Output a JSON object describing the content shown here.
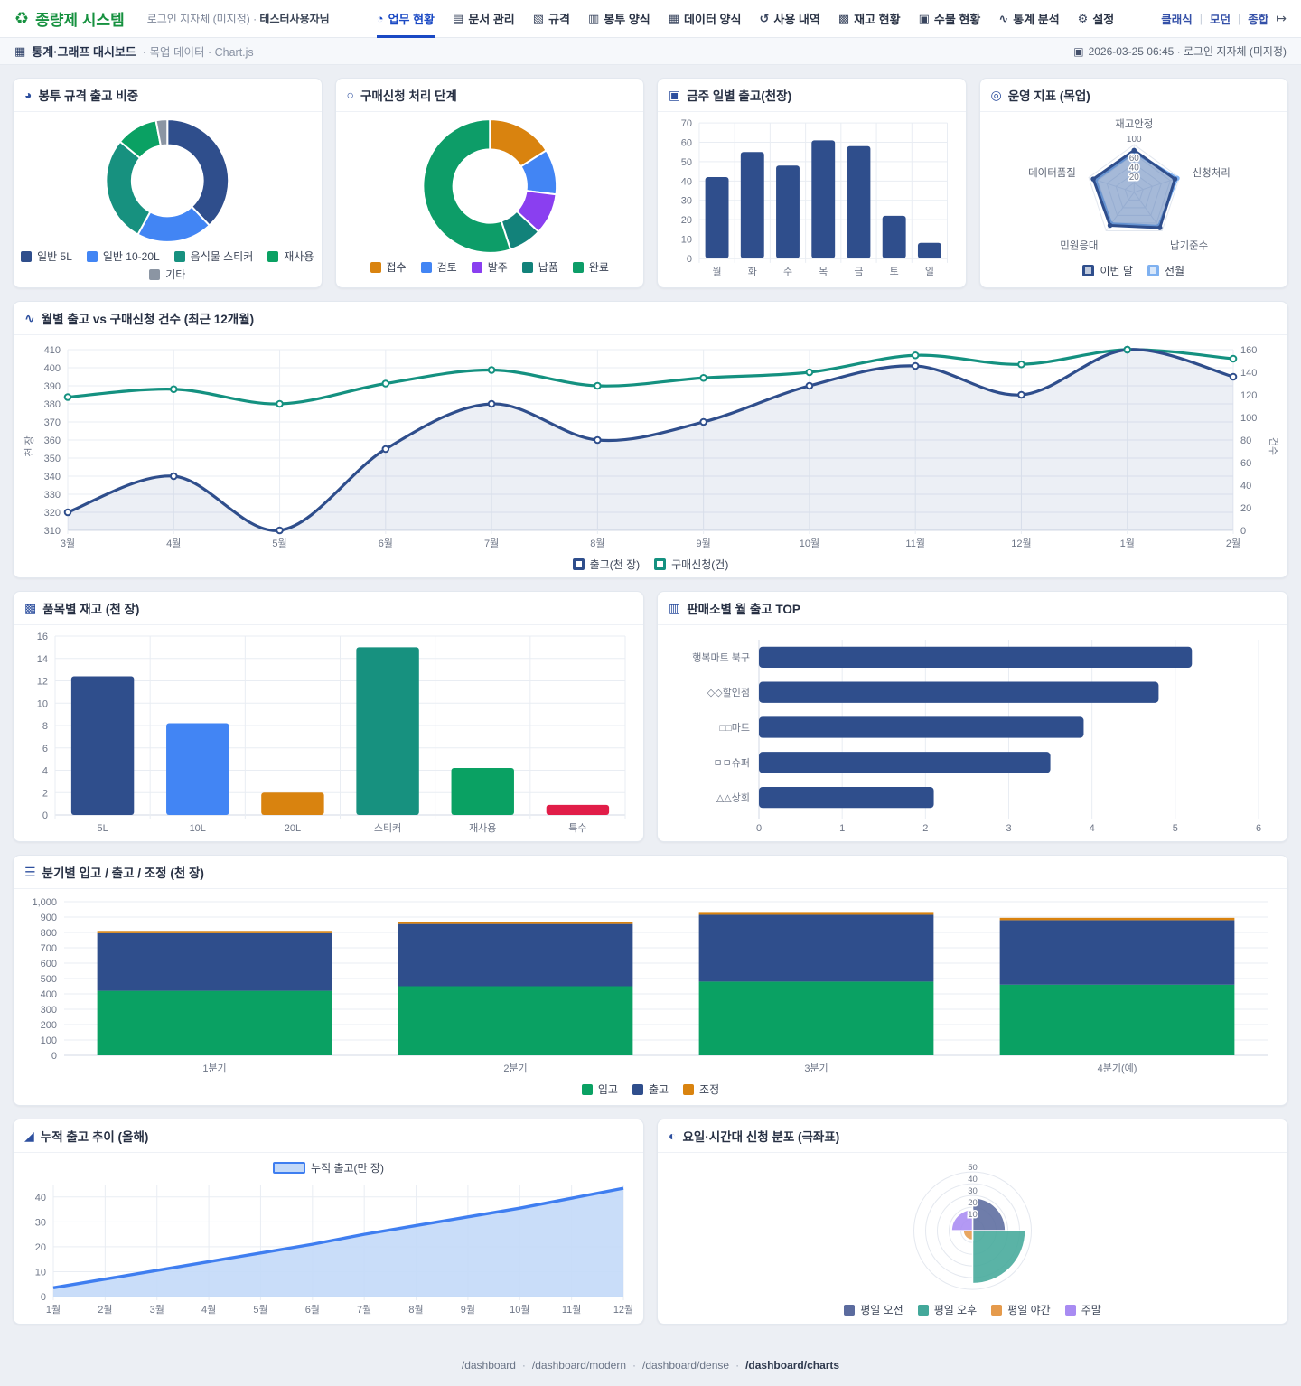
{
  "brand": {
    "icon": "♻",
    "title": "종량제 시스템",
    "org": "로그인 지자체 (미지정) ·",
    "user": "테스터사용자님"
  },
  "nav": {
    "items": [
      {
        "icon": "◔",
        "label": "업무 현황",
        "active": true
      },
      {
        "icon": "▤",
        "label": "문서 관리"
      },
      {
        "icon": "▧",
        "label": "규격"
      },
      {
        "icon": "▥",
        "label": "봉투 양식"
      },
      {
        "icon": "▦",
        "label": "데이터 양식"
      },
      {
        "icon": "↺",
        "label": "사용 내역"
      },
      {
        "icon": "▩",
        "label": "재고 현황"
      },
      {
        "icon": "▣",
        "label": "수불 현황"
      },
      {
        "icon": "∿",
        "label": "통계 분석"
      },
      {
        "icon": "⚙",
        "label": "설정"
      }
    ],
    "mode_links": [
      "클래식",
      "모던",
      "종합"
    ],
    "link_separator": "|",
    "logout_icon": "↦"
  },
  "breadcrumb": {
    "icon": "▦",
    "title": "통계·그래프 대시보드",
    "trail": "· 목업 데이터 · Chart.js",
    "meta_icon": "▣",
    "meta": "2026-03-25 06:45 · 로그인 지자체 (미지정)"
  },
  "chart_data": [
    {
      "title": "봉투 규격 출고 비중",
      "icon": "◕",
      "type": "pie",
      "cutout": 0.58,
      "labels": [
        "일반 5L",
        "일반 10-20L",
        "음식물 스티커",
        "재사용",
        "기타"
      ],
      "values": [
        38,
        20,
        28,
        11,
        3
      ],
      "colors": [
        "#2f4e8c",
        "#4285f4",
        "#17917f",
        "#0aa163",
        "#8b95a3"
      ]
    },
    {
      "title": "구매신청 처리 단계",
      "icon": "○",
      "type": "pie",
      "cutout": 0.55,
      "labels": [
        "접수",
        "검토",
        "발주",
        "납품",
        "완료"
      ],
      "values": [
        16,
        11,
        10,
        8,
        55
      ],
      "colors": [
        "#d9830f",
        "#4285f4",
        "#8a3ff0",
        "#12827a",
        "#0d9d68"
      ]
    },
    {
      "title": "금주 일별 출고(천장)",
      "icon": "▣",
      "type": "bar",
      "categories": [
        "월",
        "화",
        "수",
        "목",
        "금",
        "토",
        "일"
      ],
      "values": [
        42,
        55,
        48,
        61,
        58,
        22,
        8
      ],
      "color": "#2f4e8c",
      "ymax": 70,
      "ystep": 10
    },
    {
      "title": "운영 지표 (목업)",
      "icon": "◎",
      "type": "radar",
      "axes": [
        "재고안정",
        "신청처리",
        "납기준수",
        "민원응대",
        "데이터품질"
      ],
      "rmax": 100,
      "ticks": [
        20,
        40,
        60,
        100
      ],
      "series": [
        {
          "name": "이번 달",
          "values": [
            88,
            90,
            92,
            86,
            90
          ],
          "color": "#2f4e8c"
        },
        {
          "name": "전월",
          "values": [
            84,
            95,
            88,
            82,
            85
          ],
          "color": "#7fb1f0"
        }
      ]
    },
    {
      "title": "월별 출고 vs 구매신청 건수 (최근 12개월)",
      "icon": "∿",
      "type": "line",
      "x": [
        "3월",
        "4월",
        "5월",
        "6월",
        "7월",
        "8월",
        "9월",
        "10월",
        "11월",
        "12월",
        "1월",
        "2월"
      ],
      "series": [
        {
          "name": "출고(천 장)",
          "axis": "left",
          "values": [
            320,
            340,
            310,
            355,
            380,
            360,
            370,
            390,
            401,
            385,
            410,
            395
          ],
          "color": "#2f4e8c",
          "fill": true
        },
        {
          "name": "구매신청(건)",
          "axis": "right",
          "values": [
            118,
            125,
            112,
            130,
            142,
            128,
            135,
            140,
            155,
            147,
            160,
            152
          ],
          "color": "#149180",
          "fill": false
        }
      ],
      "left_axis": {
        "min": 310,
        "max": 410,
        "step": 10,
        "label": "천 장"
      },
      "right_axis": {
        "min": 0,
        "max": 160,
        "step": 20,
        "label": "건수"
      }
    },
    {
      "title": "품목별 재고 (천 장)",
      "icon": "▩",
      "type": "bar",
      "categories": [
        "5L",
        "10L",
        "20L",
        "스티커",
        "재사용",
        "특수"
      ],
      "values": [
        12.4,
        8.2,
        2,
        15,
        4.2,
        0.9
      ],
      "colors": [
        "#2f4e8c",
        "#4285f4",
        "#d9830f",
        "#17917f",
        "#0aa163",
        "#e11d48"
      ],
      "ymax": 16,
      "ystep": 2
    },
    {
      "title": "판매소별 월 출고 TOP",
      "icon": "▥",
      "type": "hbar",
      "categories": [
        "행복마트 북구",
        "◇◇할인점",
        "□□마트",
        "ㅁㅁ슈퍼",
        "△△상회"
      ],
      "values": [
        5.2,
        4.8,
        3.9,
        3.5,
        2.1
      ],
      "color": "#2f4e8c",
      "xmax": 6,
      "xstep": 1
    },
    {
      "title": "분기별 입고 / 출고 / 조정 (천 장)",
      "icon": "☰",
      "type": "stacked",
      "categories": [
        "1분기",
        "2분기",
        "3분기",
        "4분기(예)"
      ],
      "series": [
        {
          "name": "입고",
          "values": [
            420,
            450,
            480,
            460
          ],
          "color": "#0aa163"
        },
        {
          "name": "출고",
          "values": [
            375,
            405,
            435,
            420
          ],
          "color": "#2f4e8c"
        },
        {
          "name": "조정",
          "values": [
            15,
            12,
            18,
            15
          ],
          "color": "#d9830f"
        }
      ],
      "ymax": 1000,
      "ystep": 100
    },
    {
      "title": "누적 출고 추이 (올해)",
      "icon": "◢",
      "type": "area",
      "x": [
        "1월",
        "2월",
        "3월",
        "4월",
        "5월",
        "6월",
        "7월",
        "8월",
        "9월",
        "10월",
        "11월",
        "12월"
      ],
      "name": "누적 출고(만 장)",
      "values": [
        3.5,
        7,
        10.5,
        14,
        17.5,
        21,
        25,
        28.5,
        32,
        35.5,
        39.5,
        43.5
      ],
      "color": "#3f7ef0",
      "fill_color": "#c3d9f8",
      "ymax": 45,
      "yticks": [
        0,
        10,
        20,
        30,
        40
      ]
    },
    {
      "title": "요일·시간대 신청 분포 (극좌표)",
      "icon": "◐",
      "type": "polar",
      "categories": [
        "평일 오전",
        "평일 오후",
        "평일 야간",
        "주말"
      ],
      "values": [
        28,
        45,
        8,
        18
      ],
      "colors": [
        "#5b6b9e",
        "#43a89a",
        "#e59a4b",
        "#a88bf2"
      ],
      "rmax": 50,
      "ticks": [
        10,
        20,
        30,
        40,
        50
      ]
    }
  ],
  "footer": {
    "separator": "·",
    "links": [
      "/dashboard",
      "/dashboard/modern",
      "/dashboard/dense",
      "/dashboard/charts"
    ]
  }
}
